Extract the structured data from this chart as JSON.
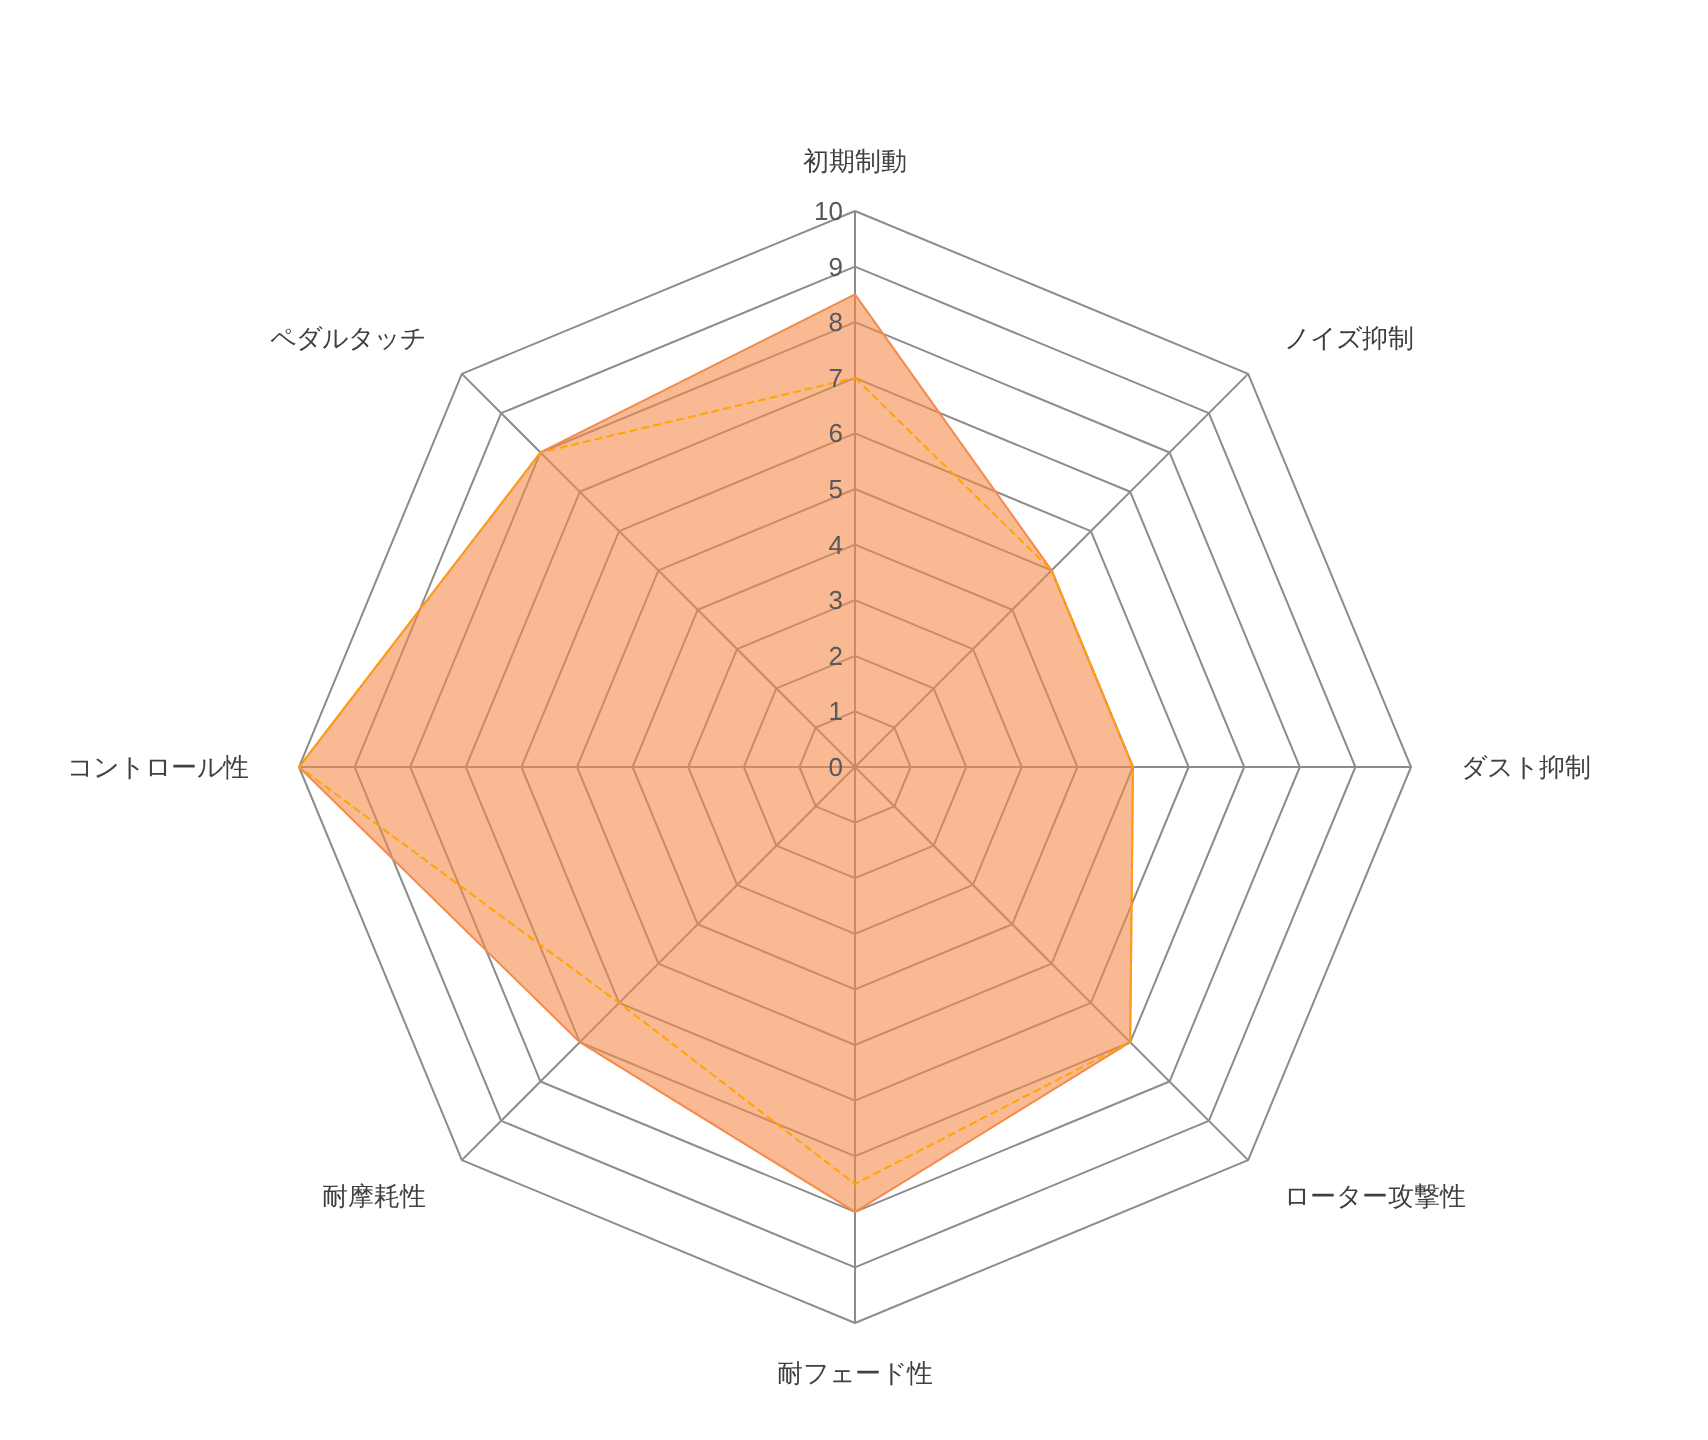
{
  "chart_data": {
    "type": "radar",
    "categories": [
      "初期制動",
      "ノイズ抑制",
      "ダスト抑制",
      "ローター攻撃性",
      "耐フェード性",
      "耐摩耗性",
      "コントロール性",
      "ペダルタッチ"
    ],
    "ylim": [
      0,
      10
    ],
    "yticks": [
      0,
      1,
      2,
      3,
      4,
      5,
      6,
      7,
      8,
      9,
      10
    ],
    "series": [
      {
        "color": "#f58a4b",
        "line_style": "solid",
        "values": [
          8.5,
          5,
          5,
          7,
          8,
          7,
          10,
          8
        ]
      },
      {
        "color": "#ffa500",
        "line_style": "dashed",
        "values": [
          7,
          5,
          5,
          7,
          7.5,
          6,
          10,
          8
        ]
      }
    ]
  }
}
